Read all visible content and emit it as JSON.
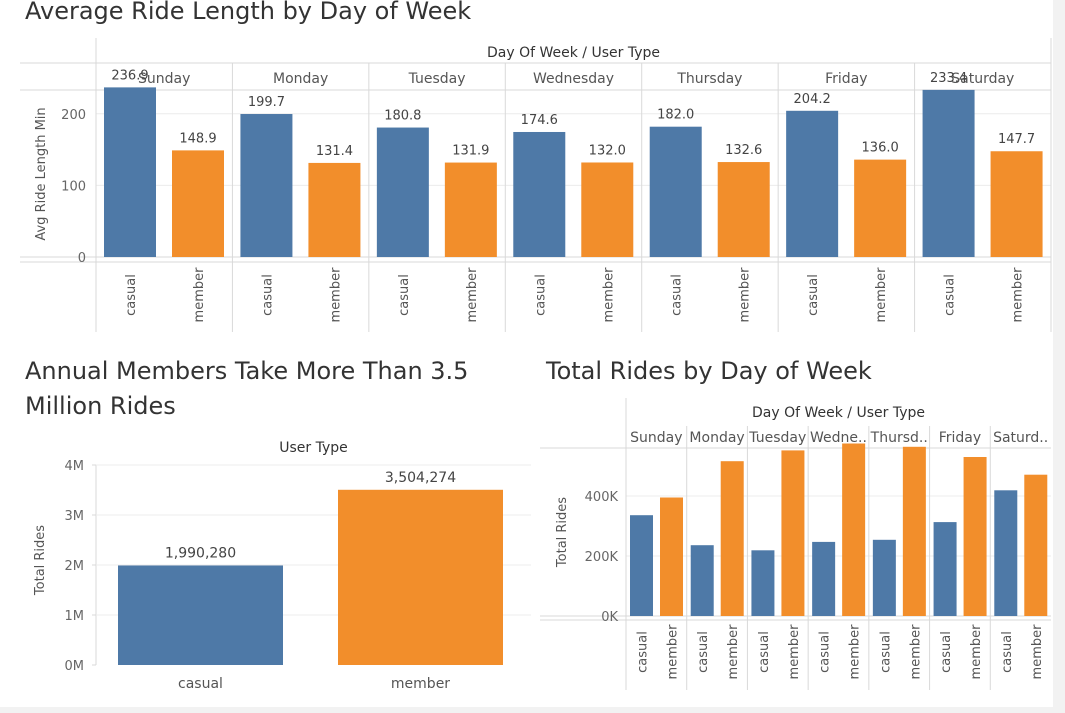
{
  "titles": {
    "top": "Average Ride Length by Day of Week",
    "bottom_left": "Annual Members Take More Than 3.5 Million Rides",
    "bottom_right": "Total Rides by Day of Week"
  },
  "colors": {
    "casual": "#4e79a7",
    "member": "#f28e2b"
  },
  "chart_data": [
    {
      "type": "bar",
      "title": "Average Ride Length by Day of Week",
      "column_header": "Day Of Week / User Type",
      "ylabel": "Avg Ride Length Min",
      "ylim": [
        0,
        250
      ],
      "yticks": [
        0,
        100,
        200
      ],
      "categories": [
        "Sunday",
        "Monday",
        "Tuesday",
        "Wednesday",
        "Thursday",
        "Friday",
        "Saturday"
      ],
      "subcategories": [
        "casual",
        "member"
      ],
      "series": [
        {
          "name": "casual",
          "values": [
            236.9,
            199.7,
            180.8,
            174.6,
            182.0,
            204.2,
            233.4
          ]
        },
        {
          "name": "member",
          "values": [
            148.9,
            131.4,
            131.9,
            132.0,
            132.6,
            136.0,
            147.7
          ]
        }
      ],
      "value_labels": {
        "casual": [
          "236.9",
          "199.7",
          "180.8",
          "174.6",
          "182.0",
          "204.2",
          "233.4"
        ],
        "member": [
          "148.9",
          "131.4",
          "131.9",
          "132.0",
          "132.6",
          "136.0",
          "147.7"
        ]
      }
    },
    {
      "type": "bar",
      "title": "Annual Members Take More Than 3.5 Million Rides",
      "column_header": "User Type",
      "ylabel": "Total Rides",
      "ylim": [
        0,
        4000000
      ],
      "ytick_values": [
        0,
        1000000,
        2000000,
        3000000,
        4000000
      ],
      "ytick_labels": [
        "0M",
        "1M",
        "2M",
        "3M",
        "4M"
      ],
      "categories": [
        "casual",
        "member"
      ],
      "values": [
        1990280,
        3504274
      ],
      "value_labels": [
        "1,990,280",
        "3,504,274"
      ]
    },
    {
      "type": "bar",
      "title": "Total Rides by Day of Week",
      "column_header": "Day Of Week / User Type",
      "ylabel": "Total Rides",
      "ylim": [
        0,
        560000
      ],
      "ytick_values": [
        0,
        200000,
        400000
      ],
      "ytick_labels": [
        "0K",
        "200K",
        "400K"
      ],
      "categories": [
        "Sunday",
        "Monday",
        "Tuesday",
        "Wedne..",
        "Thursd..",
        "Friday",
        "Saturd.."
      ],
      "subcategories": [
        "casual",
        "member"
      ],
      "series": [
        {
          "name": "casual",
          "values": [
            336000,
            236000,
            219000,
            247000,
            254000,
            313000,
            419000
          ]
        },
        {
          "name": "member",
          "values": [
            395000,
            516000,
            552000,
            575000,
            564000,
            530000,
            471000
          ]
        }
      ]
    }
  ]
}
